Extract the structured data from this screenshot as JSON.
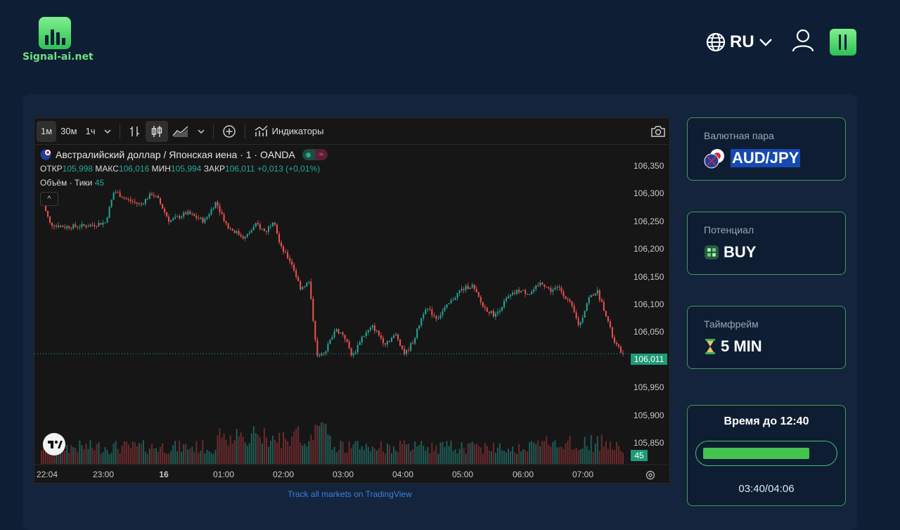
{
  "header": {
    "logo_text": "Signal-ai.net",
    "language": "RU",
    "icons": [
      "globe-icon",
      "chevron-down-icon",
      "user-icon",
      "app-menu-icon"
    ]
  },
  "chart": {
    "toolbar": {
      "intervals": [
        "1м",
        "30м",
        "1ч"
      ],
      "active_interval": "1м",
      "indicators_label": "Индикаторы"
    },
    "symbol_title": "Австралийский доллар / Японская иена · 1 · OANDA",
    "ohlc": {
      "open_label": "ОТКР",
      "open": "105,998",
      "high_label": "МАКС",
      "high": "106,016",
      "low_label": "МИН",
      "low": "105,994",
      "close_label": "ЗАКР",
      "close": "106,011",
      "change": "+0,013 (+0,01%)"
    },
    "volume_legend": {
      "label": "Объём · Тики",
      "value": "45"
    },
    "collapse_glyph": "^",
    "current_price": "106,011",
    "current_volume": "45",
    "link_text": "Track all markets on TradingView",
    "colors": {
      "up": "#26a69a",
      "down": "#ef5350"
    }
  },
  "chart_data": {
    "type": "candlestick",
    "title": "Австралийский доллар / Японская иена · 1 · OANDA",
    "y_ticks": [
      "106,350",
      "106,300",
      "106,250",
      "106,200",
      "106,150",
      "106,100",
      "106,050",
      "106,000",
      "105,950",
      "105,900",
      "105,850"
    ],
    "x_ticks": [
      "22:04",
      "23:00",
      "16",
      "01:00",
      "02:00",
      "03:00",
      "04:00",
      "05:00",
      "06:00",
      "07:00"
    ],
    "ylim": [
      105.83,
      106.36
    ],
    "price_path": [
      [
        0,
        106.29
      ],
      [
        0.015,
        106.245
      ],
      [
        0.04,
        106.24
      ],
      [
        0.08,
        106.242
      ],
      [
        0.11,
        106.248
      ],
      [
        0.125,
        106.305
      ],
      [
        0.145,
        106.29
      ],
      [
        0.17,
        106.28
      ],
      [
        0.19,
        106.3
      ],
      [
        0.2,
        106.29
      ],
      [
        0.22,
        106.25
      ],
      [
        0.25,
        106.265
      ],
      [
        0.28,
        106.25
      ],
      [
        0.3,
        106.285
      ],
      [
        0.32,
        106.24
      ],
      [
        0.35,
        106.22
      ],
      [
        0.37,
        106.245
      ],
      [
        0.385,
        106.23
      ],
      [
        0.4,
        106.255
      ],
      [
        0.41,
        106.205
      ],
      [
        0.43,
        106.175
      ],
      [
        0.445,
        106.13
      ],
      [
        0.46,
        106.14
      ],
      [
        0.475,
        106.0
      ],
      [
        0.49,
        106.02
      ],
      [
        0.505,
        106.055
      ],
      [
        0.52,
        106.045
      ],
      [
        0.535,
        106.005
      ],
      [
        0.55,
        106.04
      ],
      [
        0.57,
        106.06
      ],
      [
        0.59,
        106.03
      ],
      [
        0.61,
        106.045
      ],
      [
        0.625,
        106.01
      ],
      [
        0.64,
        106.035
      ],
      [
        0.66,
        106.095
      ],
      [
        0.68,
        106.075
      ],
      [
        0.7,
        106.1
      ],
      [
        0.72,
        106.125
      ],
      [
        0.74,
        106.135
      ],
      [
        0.76,
        106.095
      ],
      [
        0.78,
        106.08
      ],
      [
        0.8,
        106.11
      ],
      [
        0.82,
        106.125
      ],
      [
        0.84,
        106.12
      ],
      [
        0.86,
        106.14
      ],
      [
        0.875,
        106.125
      ],
      [
        0.89,
        106.13
      ],
      [
        0.91,
        106.1
      ],
      [
        0.925,
        106.06
      ],
      [
        0.94,
        106.11
      ],
      [
        0.955,
        106.125
      ],
      [
        0.97,
        106.085
      ],
      [
        0.985,
        106.03
      ],
      [
        1.0,
        106.011
      ]
    ]
  },
  "signal": {
    "pair_label": "Валютная пара",
    "pair_value": "AUD/JPY",
    "potential_label": "Потенциал",
    "potential_value": "BUY",
    "timeframe_label": "Таймфрейм",
    "timeframe_value": "5 MIN",
    "timer_title": "Время до 12:40",
    "timer_progress": 0.84,
    "timer_text": "03:40/04:06"
  }
}
